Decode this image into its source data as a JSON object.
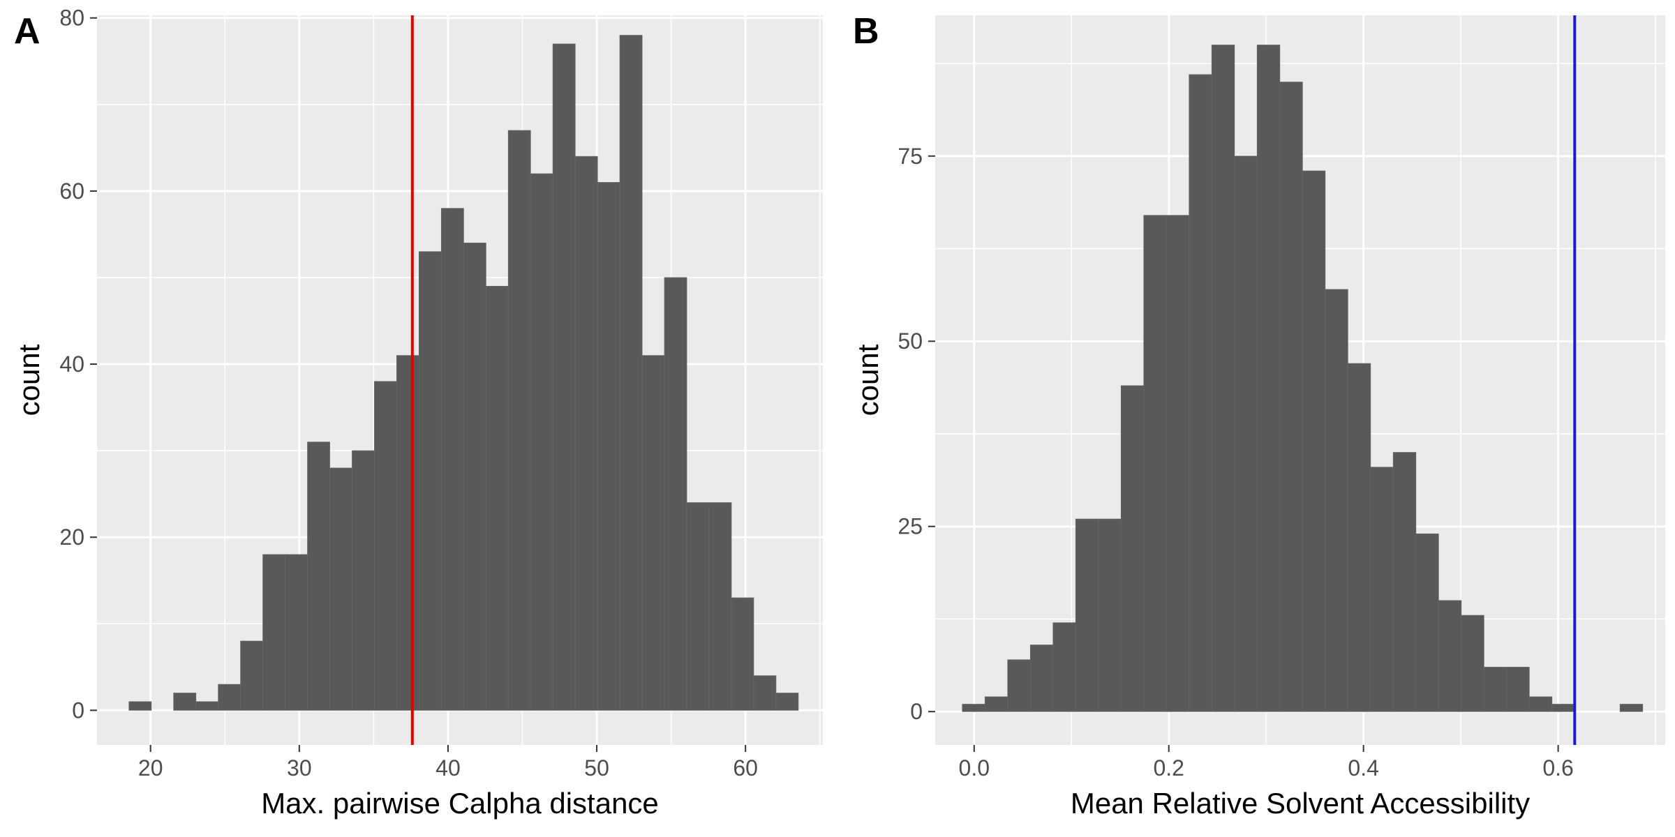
{
  "chart_data": [
    {
      "panel": "A",
      "type": "bar",
      "subtype": "histogram",
      "title": "",
      "xlabel": "Max. pairwise Calpha distance",
      "ylabel": "count",
      "xlim": [
        16.4,
        65.2
      ],
      "ylim": [
        -4,
        80.3
      ],
      "xticks": [
        20,
        30,
        40,
        50,
        60
      ],
      "yticks": [
        0,
        20,
        40,
        60,
        80
      ],
      "bin_width": 1.5,
      "bins": [
        {
          "x": 19.3,
          "count": 1
        },
        {
          "x": 20.8,
          "count": 0
        },
        {
          "x": 22.3,
          "count": 2
        },
        {
          "x": 23.8,
          "count": 1
        },
        {
          "x": 25.3,
          "count": 3
        },
        {
          "x": 26.8,
          "count": 8
        },
        {
          "x": 28.3,
          "count": 18
        },
        {
          "x": 29.8,
          "count": 18
        },
        {
          "x": 31.3,
          "count": 31
        },
        {
          "x": 32.8,
          "count": 28
        },
        {
          "x": 34.3,
          "count": 30
        },
        {
          "x": 35.8,
          "count": 38
        },
        {
          "x": 37.3,
          "count": 41
        },
        {
          "x": 38.8,
          "count": 53
        },
        {
          "x": 40.3,
          "count": 58
        },
        {
          "x": 41.8,
          "count": 54
        },
        {
          "x": 43.3,
          "count": 49
        },
        {
          "x": 44.8,
          "count": 67
        },
        {
          "x": 46.3,
          "count": 62
        },
        {
          "x": 47.8,
          "count": 77
        },
        {
          "x": 49.3,
          "count": 64
        },
        {
          "x": 50.8,
          "count": 61
        },
        {
          "x": 52.3,
          "count": 78
        },
        {
          "x": 53.8,
          "count": 41
        },
        {
          "x": 55.3,
          "count": 50
        },
        {
          "x": 56.8,
          "count": 24
        },
        {
          "x": 58.3,
          "count": 24
        },
        {
          "x": 59.8,
          "count": 13
        },
        {
          "x": 61.3,
          "count": 4
        },
        {
          "x": 62.8,
          "count": 2
        }
      ],
      "vline": {
        "x": 37.6,
        "color": "#e60000"
      },
      "bar_color": "#595959",
      "background": "#ebebeb",
      "grid": true,
      "legend": "none"
    },
    {
      "panel": "B",
      "type": "bar",
      "subtype": "histogram",
      "title": "",
      "xlabel": "Mean Relative Solvent Accessibility",
      "ylabel": "count",
      "xlim": [
        -0.04,
        0.71
      ],
      "ylim": [
        -4.5,
        94
      ],
      "xticks": [
        0.0,
        0.2,
        0.4,
        0.6
      ],
      "xtick_labels": [
        "0.0",
        "0.2",
        "0.4",
        "0.6"
      ],
      "yticks": [
        0,
        25,
        50,
        75
      ],
      "bin_width": 0.0233,
      "bins": [
        {
          "x": -0.0005,
          "count": 1
        },
        {
          "x": 0.0228,
          "count": 2
        },
        {
          "x": 0.0461,
          "count": 7
        },
        {
          "x": 0.0694,
          "count": 9
        },
        {
          "x": 0.0927,
          "count": 12
        },
        {
          "x": 0.116,
          "count": 26
        },
        {
          "x": 0.1393,
          "count": 26
        },
        {
          "x": 0.1626,
          "count": 44
        },
        {
          "x": 0.1859,
          "count": 67
        },
        {
          "x": 0.2092,
          "count": 67
        },
        {
          "x": 0.2325,
          "count": 86
        },
        {
          "x": 0.2558,
          "count": 90
        },
        {
          "x": 0.2791,
          "count": 75
        },
        {
          "x": 0.3024,
          "count": 90
        },
        {
          "x": 0.3257,
          "count": 85
        },
        {
          "x": 0.349,
          "count": 73
        },
        {
          "x": 0.3723,
          "count": 57
        },
        {
          "x": 0.3956,
          "count": 47
        },
        {
          "x": 0.4189,
          "count": 33
        },
        {
          "x": 0.4422,
          "count": 35
        },
        {
          "x": 0.4655,
          "count": 24
        },
        {
          "x": 0.4888,
          "count": 15
        },
        {
          "x": 0.5121,
          "count": 13
        },
        {
          "x": 0.5354,
          "count": 6
        },
        {
          "x": 0.5587,
          "count": 6
        },
        {
          "x": 0.582,
          "count": 2
        },
        {
          "x": 0.6053,
          "count": 1
        },
        {
          "x": 0.6286,
          "count": 0
        },
        {
          "x": 0.6519,
          "count": 0
        },
        {
          "x": 0.6752,
          "count": 1
        }
      ],
      "vline": {
        "x": 0.617,
        "color": "#1a1ad6"
      },
      "bar_color": "#595959",
      "background": "#ebebeb",
      "grid": true,
      "legend": "none"
    }
  ]
}
